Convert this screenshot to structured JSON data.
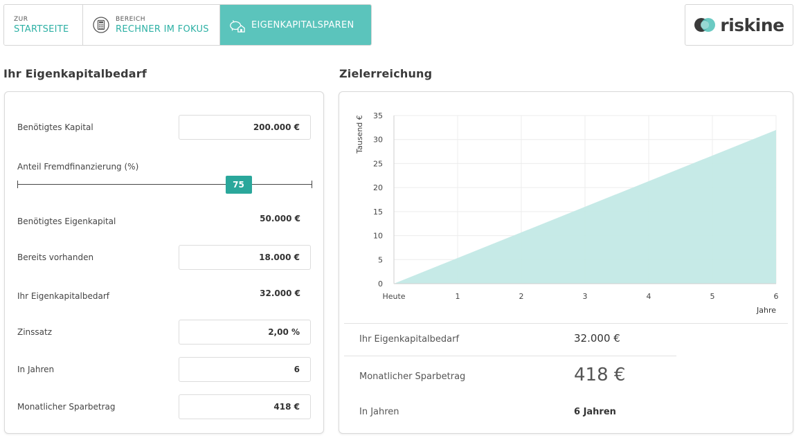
{
  "nav": {
    "home": {
      "small": "ZUR",
      "big": "STARTSEITE"
    },
    "rechner": {
      "small": "BEREICH",
      "big": "RECHNER IM FOKUS",
      "icon": "calculator-icon"
    },
    "active": {
      "big": "EIGENKAPITALSPAREN",
      "icon": "piggy-bank-house-icon"
    }
  },
  "logo": {
    "text": "riskine",
    "icon": "riskine-logo-circles"
  },
  "left": {
    "title": "Ihr Eigenkapitalbedarf",
    "kapital": {
      "label": "Benötigtes Kapital",
      "value": "200.000 €"
    },
    "fremd": {
      "label": "Anteil Fremdfinanzierung (%)",
      "value": "75",
      "fraction": 0.75
    },
    "eigenkapital": {
      "label": "Benötigtes Eigenkapital",
      "value": "50.000 €"
    },
    "vorhanden": {
      "label": "Bereits vorhanden",
      "value": "18.000 €"
    },
    "bedarf": {
      "label": "Ihr Eigenkapitalbedarf",
      "value": "32.000 €"
    },
    "zins": {
      "label": "Zinssatz",
      "value": "2,00 %"
    },
    "jahre": {
      "label": "In Jahren",
      "value": "6"
    },
    "sparbetrag": {
      "label": "Monatlicher Sparbetrag",
      "value": "418 €"
    }
  },
  "right": {
    "title": "Zielerreichung",
    "results": {
      "bedarf": {
        "label": "Ihr Eigenkapitalbedarf",
        "value": "32.000 €"
      },
      "sparbetrag": {
        "label": "Monatlicher Sparbetrag",
        "value": "418 €"
      },
      "jahre": {
        "label": "In Jahren",
        "value": "6 Jahren"
      }
    }
  },
  "colors": {
    "accent": "#2aa79b",
    "tab_active": "#5bc4bc",
    "area_fill": "#c3e9e6"
  },
  "chart_data": {
    "type": "area",
    "x": [
      0,
      6
    ],
    "x_tick_labels": [
      "Heute",
      "1",
      "2",
      "3",
      "4",
      "5",
      "6"
    ],
    "y_ticks": [
      0,
      5,
      10,
      15,
      20,
      25,
      30,
      35
    ],
    "series": [
      {
        "values": [
          0,
          32
        ]
      }
    ],
    "ylabel": "Tausend €",
    "xlabel": "Jahre",
    "xlim": [
      0,
      6
    ],
    "ylim": [
      0,
      35
    ],
    "grid": true
  }
}
